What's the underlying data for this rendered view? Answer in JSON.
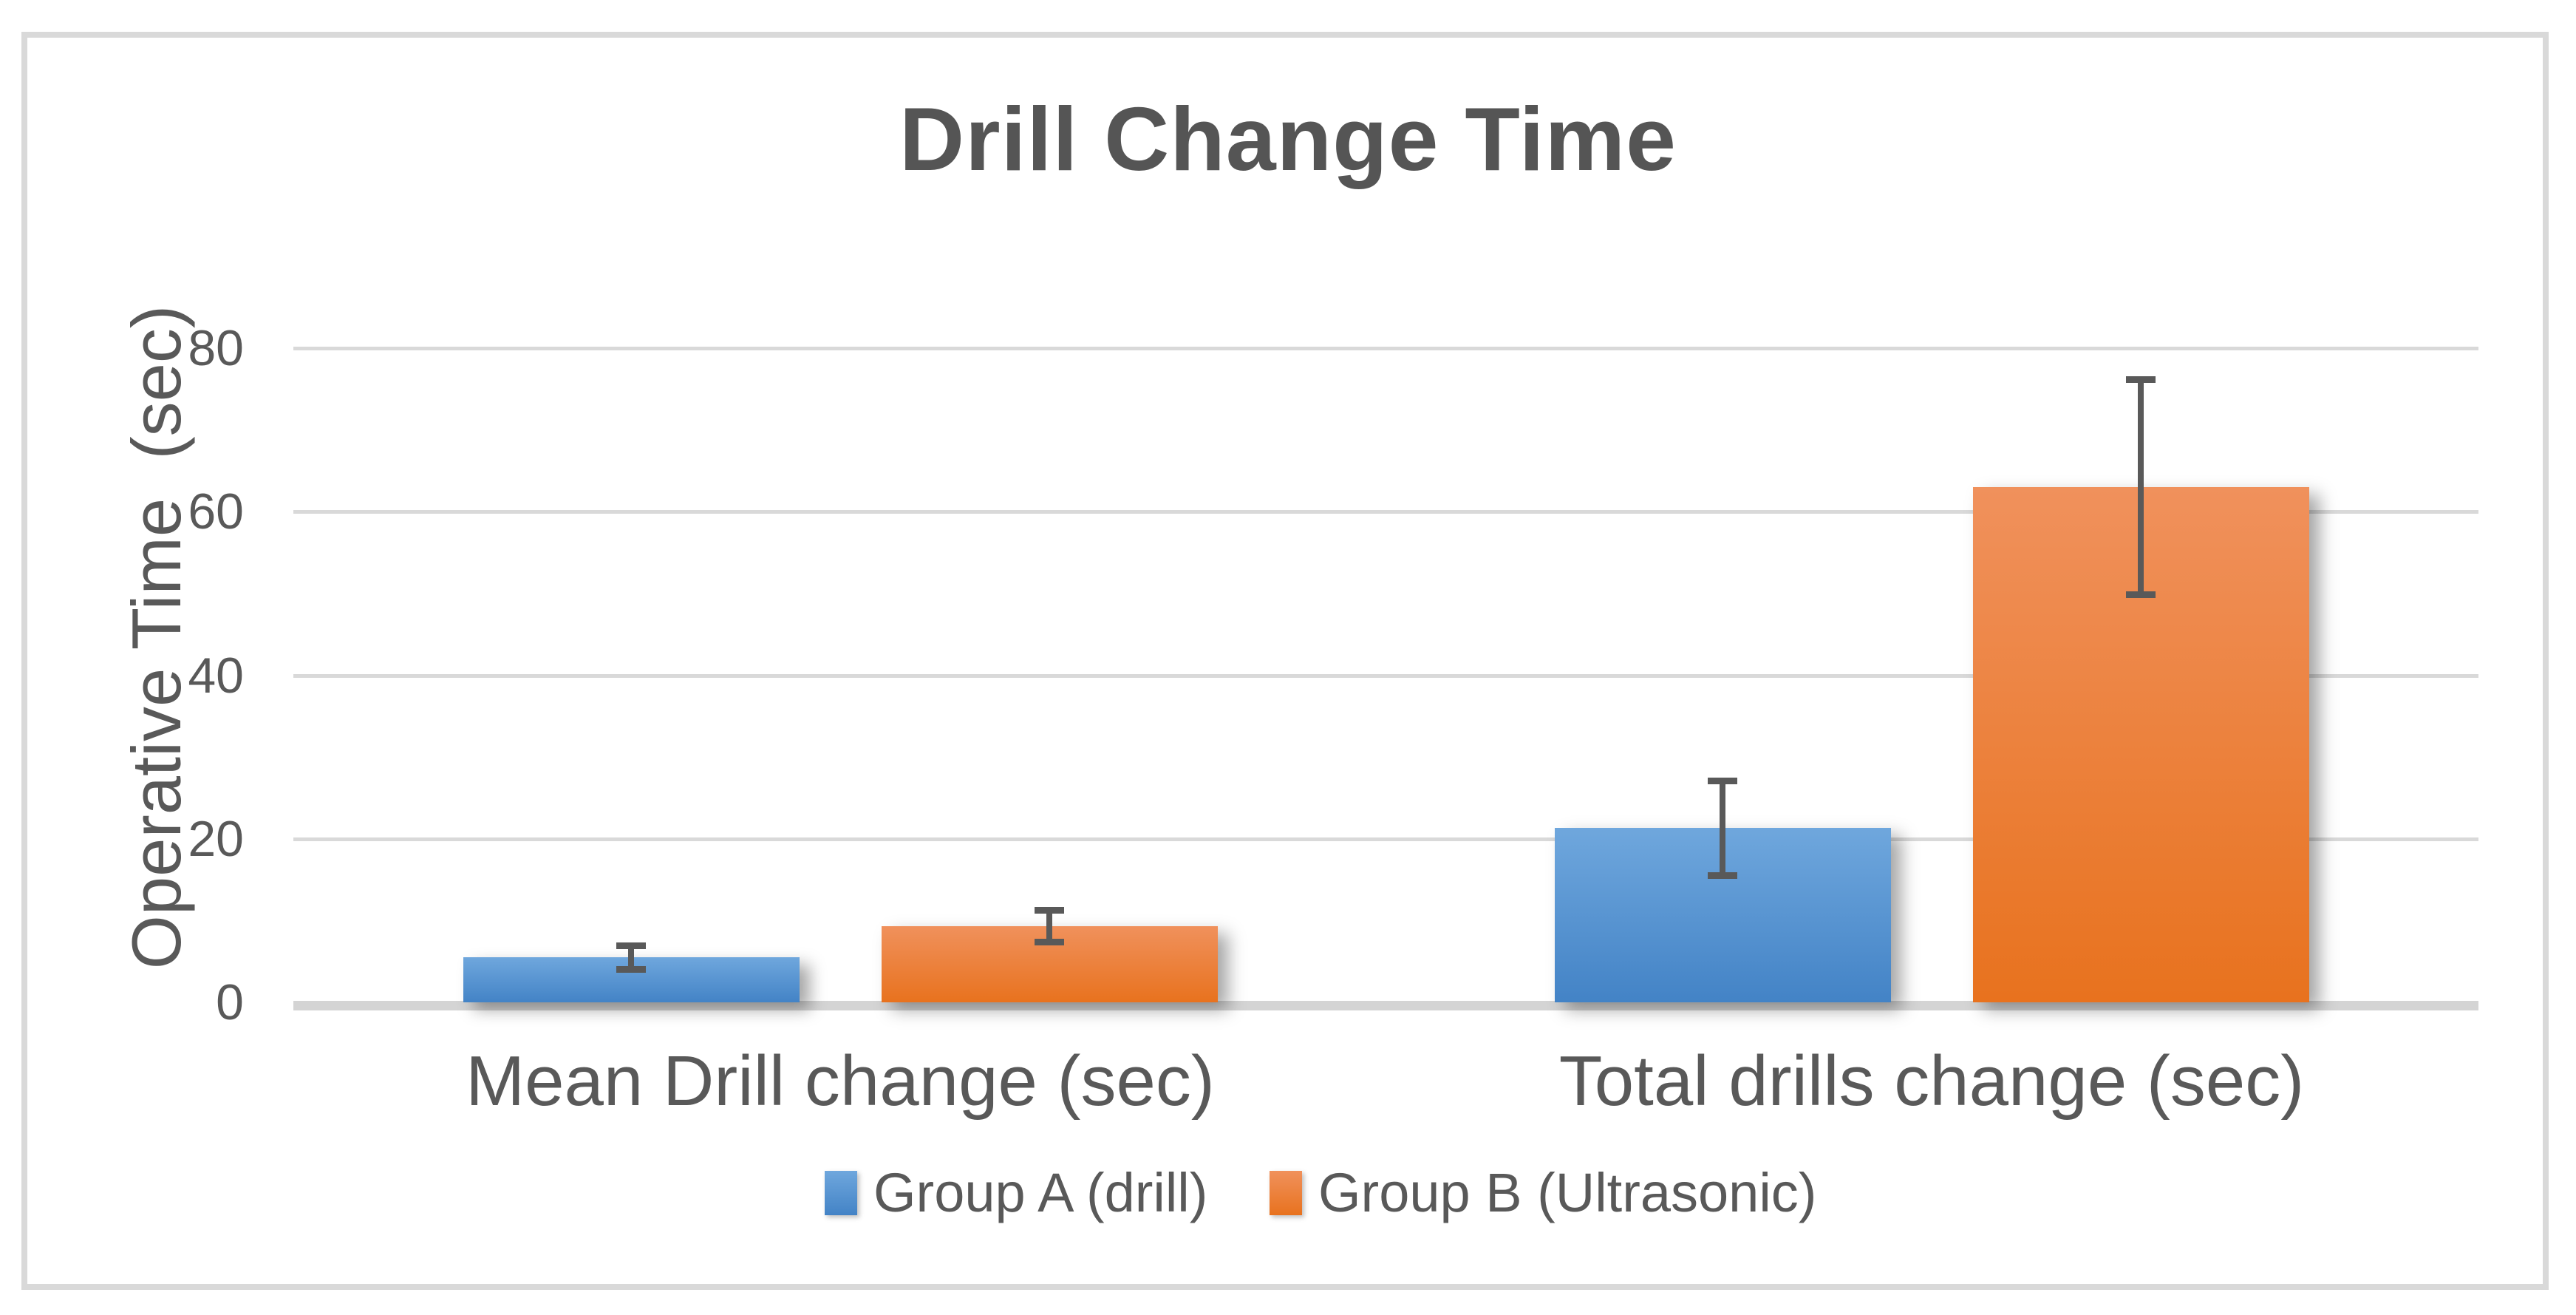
{
  "title": "Drill Change Time",
  "y_axis_title": "Operative Time  (sec)",
  "colors": {
    "text": "#595959",
    "title_text": "#555555",
    "gridline": "#D9D9D9",
    "axis_line": "#D4D4D4",
    "error_bar": "#595959",
    "series_a_base": "#5B9BD5",
    "series_b_base": "#ED7D31"
  },
  "chart_data": {
    "type": "bar",
    "title": "Drill Change Time",
    "xlabel": "",
    "ylabel": "Operative Time  (sec)",
    "ylim": [
      0,
      80
    ],
    "yticks": [
      0,
      20,
      40,
      60,
      80
    ],
    "grid": true,
    "legend_position": "bottom",
    "categories": [
      "Mean Drill change (sec)",
      "Total drills change (sec)"
    ],
    "series": [
      {
        "name": "Group A (drill)",
        "color": "#5B9BD5",
        "gradient": [
          "#6FA7DD",
          "#4383C6"
        ],
        "values": [
          5.5,
          21.3
        ],
        "error_bars": [
          1.5,
          5.8
        ]
      },
      {
        "name": "Group B (Ultrasonic)",
        "color": "#ED7D31",
        "gradient": [
          "#F0915C",
          "#E8721E"
        ],
        "values": [
          9.3,
          63.0
        ],
        "error_bars": [
          2.0,
          13.2
        ]
      }
    ]
  }
}
